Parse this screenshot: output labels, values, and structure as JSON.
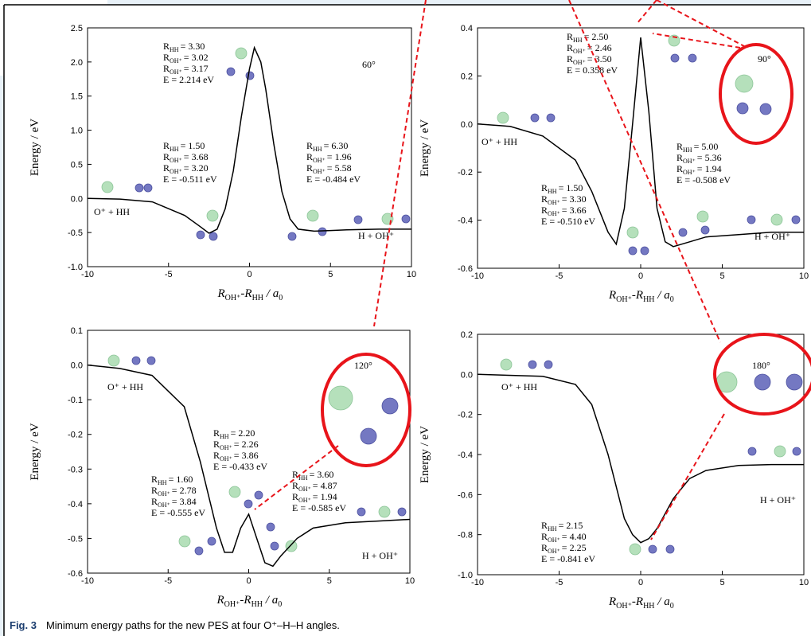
{
  "chart_data": [
    {
      "type": "line",
      "ylabel": "Energy / eV",
      "xlabel": [
        {
          "t": "R",
          "sub": "OH⁺"
        },
        {
          "t": "-R",
          "sub": "HH"
        },
        {
          "t": " / a",
          "sub": "0"
        }
      ],
      "x": [
        -10,
        -8,
        -6,
        -4,
        -3,
        -2.5,
        -2,
        -1.5,
        -1,
        -0.5,
        0,
        0.3,
        0.7,
        1,
        1.5,
        2,
        2.5,
        3,
        4,
        5,
        6,
        8,
        10
      ],
      "values": [
        0.0,
        -0.01,
        -0.05,
        -0.25,
        -0.42,
        -0.51,
        -0.45,
        -0.15,
        0.4,
        1.2,
        1.9,
        2.21,
        2.0,
        1.6,
        0.8,
        0.1,
        -0.3,
        -0.45,
        -0.48,
        -0.47,
        -0.46,
        -0.45,
        -0.45
      ],
      "color": "#000000",
      "xlim": [
        -10,
        10
      ],
      "xticks": [
        -10,
        -5,
        0,
        5,
        10
      ],
      "ylim": [
        -1,
        2.5
      ],
      "yticks": [
        {
          "value": -1,
          "label": "-1.0"
        },
        -0.5,
        {
          "value": 0,
          "label": "0.0"
        },
        0.5,
        {
          "value": 1,
          "label": "1.0"
        },
        1.5,
        {
          "value": 2,
          "label": "2.0"
        },
        2.5
      ],
      "labels": [
        "60°",
        "O⁺ + HH",
        "H + OH⁺"
      ],
      "annotations": [
        [
          {
            "r": "R",
            "sub": "HH",
            "value": "= 3.30"
          },
          {
            "r": "R",
            "sub": "OH⁺",
            "value": "= 3.02"
          },
          {
            "r": "R",
            "sub": "OH⁺",
            "value": "= 3.17"
          },
          "E = 2.214 eV"
        ],
        [
          {
            "r": "R",
            "sub": "HH",
            "value": "= 1.50"
          },
          {
            "r": "R",
            "sub": "OH⁺",
            "value": "= 3.68"
          },
          {
            "r": "R",
            "sub": "OH⁺",
            "value": "= 3.20"
          },
          "E = -0.511 eV"
        ],
        [
          {
            "r": "R",
            "sub": "HH",
            "value": "= 6.30"
          },
          {
            "r": "R",
            "sub": "OH⁺",
            "value": "= 1.96"
          },
          {
            "r": "R",
            "sub": "OH⁺",
            "value": "= 5.58"
          },
          "E = -0.484 eV"
        ]
      ]
    },
    {
      "type": "line",
      "ylabel": "Energy / eV",
      "xlabel": [
        {
          "t": "R",
          "sub": "OH⁺"
        },
        {
          "t": "-R",
          "sub": "HH"
        },
        {
          "t": " / a",
          "sub": "0"
        }
      ],
      "x": [
        -10,
        -8,
        -6,
        -4,
        -3,
        -2,
        -1.5,
        -1,
        -0.5,
        0,
        0.5,
        1,
        1.5,
        2,
        3,
        4,
        6,
        8,
        10
      ],
      "values": [
        0,
        -0.01,
        -0.05,
        -0.15,
        -0.28,
        -0.45,
        -0.5,
        -0.35,
        0.0,
        0.36,
        0.05,
        -0.35,
        -0.49,
        -0.51,
        -0.49,
        -0.47,
        -0.46,
        -0.45,
        -0.45
      ],
      "color": "#000000",
      "xlim": [
        -10,
        10
      ],
      "xticks": [
        -10,
        -5,
        0,
        5,
        10
      ],
      "ylim": [
        -0.6,
        0.4
      ],
      "yticks": [
        -0.6,
        -0.4,
        -0.2,
        {
          "value": 0,
          "label": "0.0"
        },
        0.2,
        0.4
      ],
      "labels": [
        "90°",
        "O⁺ + HH",
        "H + OH⁺"
      ],
      "annotations": [
        [
          {
            "r": "R",
            "sub": "HH",
            "value": "= 2.50"
          },
          {
            "r": "R",
            "sub": "OH⁺",
            "value": "= 2.46"
          },
          {
            "r": "R",
            "sub": "OH⁺",
            "value": "= 3.50"
          },
          "E = 0.358 eV"
        ],
        [
          {
            "r": "R",
            "sub": "HH",
            "value": "= 1.50"
          },
          {
            "r": "R",
            "sub": "OH⁺",
            "value": "= 3.30"
          },
          {
            "r": "R",
            "sub": "OH⁺",
            "value": "= 3.66"
          },
          "E = -0.510 eV"
        ],
        [
          {
            "r": "R",
            "sub": "HH",
            "value": "= 5.00"
          },
          {
            "r": "R",
            "sub": "OH⁺",
            "value": "= 5.36"
          },
          {
            "r": "R",
            "sub": "OH⁺",
            "value": "= 1.94"
          },
          "E = -0.508 eV"
        ]
      ]
    },
    {
      "type": "line",
      "ylabel": "Energy / eV",
      "xlabel": [
        {
          "t": "R",
          "sub": "OH⁺"
        },
        {
          "t": "-R",
          "sub": "HH"
        },
        {
          "t": " / a",
          "sub": "0"
        }
      ],
      "x": [
        -10,
        -8,
        -6,
        -4,
        -3,
        -2,
        -1.5,
        -1,
        -0.5,
        0,
        0.5,
        1,
        1.5,
        2,
        3,
        4,
        6,
        8,
        10
      ],
      "values": [
        0,
        -0.01,
        -0.03,
        -0.12,
        -0.28,
        -0.47,
        -0.54,
        -0.54,
        -0.47,
        -0.43,
        -0.5,
        -0.57,
        -0.58,
        -0.55,
        -0.5,
        -0.47,
        -0.455,
        -0.45,
        -0.445
      ],
      "color": "#000000",
      "xlim": [
        -10,
        10
      ],
      "xticks": [
        -10,
        -5,
        0,
        5,
        10
      ],
      "ylim": [
        -0.6,
        0.1
      ],
      "yticks": [
        -0.6,
        -0.5,
        -0.4,
        -0.3,
        -0.2,
        -0.1,
        {
          "value": 0,
          "label": "0.0"
        },
        0.1
      ],
      "labels": [
        "120°",
        "O⁺ + HH",
        "H + OH⁺"
      ],
      "annotations": [
        [
          {
            "r": "R",
            "sub": "HH",
            "value": "= 2.20"
          },
          {
            "r": "R",
            "sub": "OH⁺",
            "value": "= 2.26"
          },
          {
            "r": "R",
            "sub": "OH⁺",
            "value": "= 3.86"
          },
          "E = -0.433 eV"
        ],
        [
          {
            "r": "R",
            "sub": "HH",
            "value": "= 1.60"
          },
          {
            "r": "R",
            "sub": "OH⁺",
            "value": "= 2.78"
          },
          {
            "r": "R",
            "sub": "OH⁺",
            "value": "= 3.84"
          },
          "E = -0.555 eV"
        ],
        [
          {
            "r": "R",
            "sub": "HH",
            "value": "= 3.60"
          },
          {
            "r": "R",
            "sub": "OH⁺",
            "value": "= 4.87"
          },
          {
            "r": "R",
            "sub": "OH⁺",
            "value": "= 1.94"
          },
          "E = -0.585 eV"
        ]
      ]
    },
    {
      "type": "line",
      "ylabel": "Energy / eV",
      "xlabel": [
        {
          "t": "R",
          "sub": "OH⁺"
        },
        {
          "t": "-R",
          "sub": "HH"
        },
        {
          "t": " / a",
          "sub": "0"
        }
      ],
      "x": [
        -10,
        -6,
        -4,
        -3,
        -2,
        -1,
        -0.5,
        0,
        0.5,
        1,
        2,
        3,
        4,
        6,
        8,
        10
      ],
      "values": [
        0,
        -0.01,
        -0.05,
        -0.15,
        -0.4,
        -0.72,
        -0.8,
        -0.84,
        -0.82,
        -0.77,
        -0.62,
        -0.52,
        -0.48,
        -0.455,
        -0.45,
        -0.45
      ],
      "color": "#000000",
      "xlim": [
        -10,
        10
      ],
      "xticks": [
        -10,
        -5,
        0,
        5,
        10
      ],
      "ylim": [
        -1,
        0.2
      ],
      "yticks": [
        {
          "value": -1,
          "label": "-1.0"
        },
        -0.8,
        -0.6,
        -0.4,
        -0.2,
        {
          "value": 0,
          "label": "0.0"
        },
        0.2
      ],
      "labels": [
        "180°",
        "O⁺ + HH",
        "H + OH⁺"
      ],
      "annotations": [
        [
          {
            "r": "R",
            "sub": "HH",
            "value": "= 2.15"
          },
          {
            "r": "R",
            "sub": "OH⁺",
            "value": "= 4.40"
          },
          {
            "r": "R",
            "sub": "OH⁺",
            "value": "= 2.25"
          },
          "E = -0.841 eV"
        ]
      ]
    }
  ],
  "caption": {
    "label": "Fig. 3",
    "text": "Minimum energy paths for the new PES at four O⁺–H–H angles."
  }
}
